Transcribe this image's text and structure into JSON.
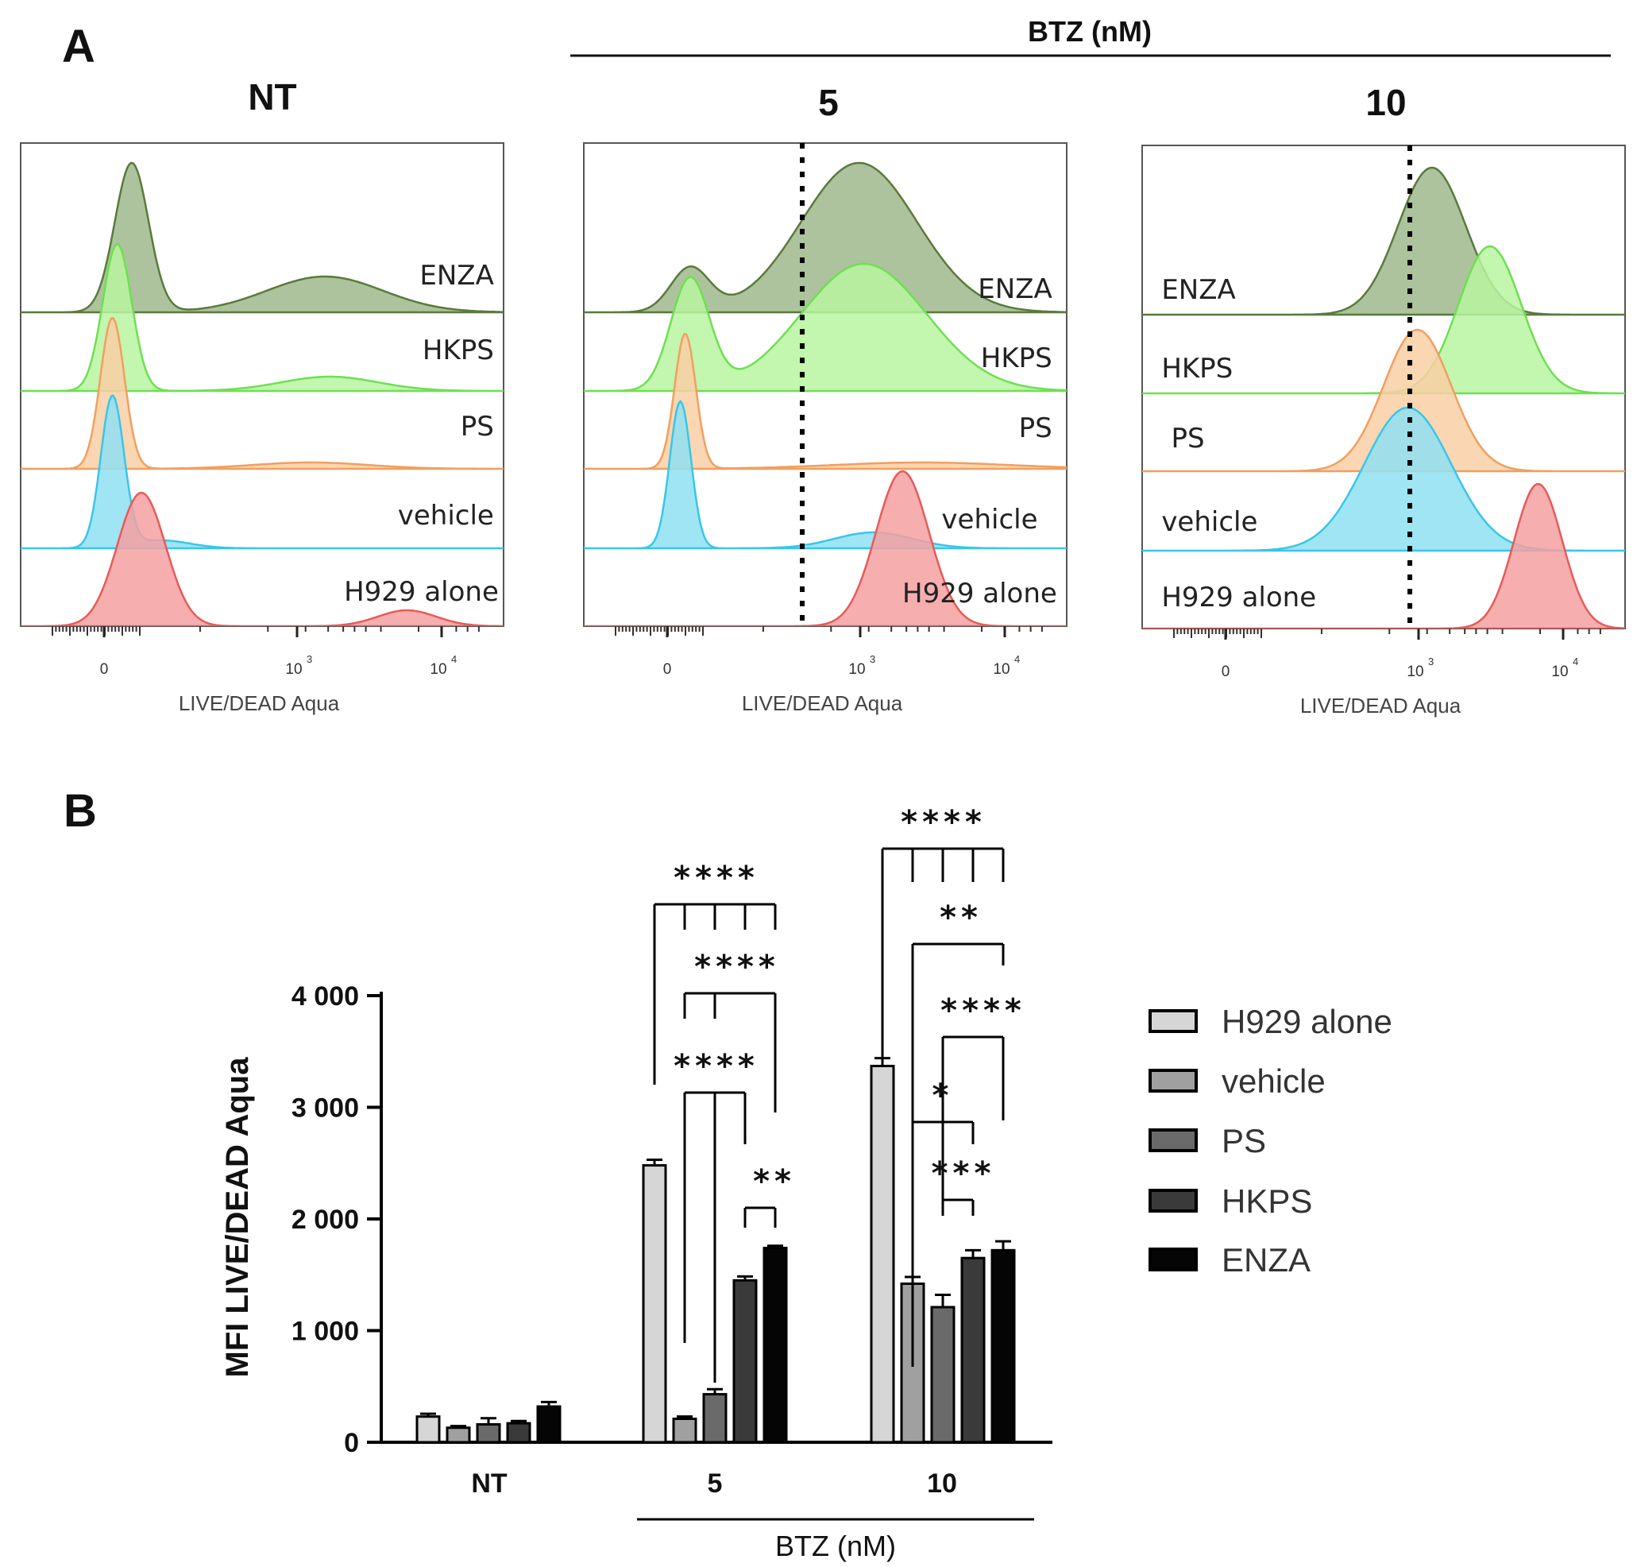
{
  "figure": {
    "panel_a_letter": "A",
    "panel_b_letter": "B"
  },
  "panel_a": {
    "btz_header": "BTZ (nM)",
    "xlabel": "LIVE/DEAD Aqua",
    "tick_labels": {
      "zero": "0",
      "base": "10",
      "exp3": "3",
      "exp4": "4"
    },
    "series_colors": {
      "ENZA": {
        "fill": "#9fb88c",
        "stroke": "#5a7a3c"
      },
      "HKPS": {
        "fill": "#b8f5a0",
        "stroke": "#6ee052"
      },
      "PS": {
        "fill": "#f9cfa4",
        "stroke": "#f0a060"
      },
      "vehicle": {
        "fill": "#8fe0f2",
        "stroke": "#39c6ea"
      },
      "H929 alone": {
        "fill": "#f4a0a0",
        "stroke": "#e85a5a"
      }
    },
    "panels": [
      {
        "title": "NT",
        "labels": [
          "ENZA",
          "HKPS",
          "PS",
          "vehicle",
          "H929 alone"
        ],
        "dotted_line": false
      },
      {
        "title": "5",
        "labels": [
          "ENZA",
          "HKPS",
          "PS",
          "vehicle",
          "H929 alone"
        ],
        "dotted_line": true
      },
      {
        "title": "10",
        "labels": [
          "ENZA",
          "HKPS",
          "PS",
          "vehicle",
          "H929 alone"
        ],
        "dotted_line": true
      }
    ]
  },
  "chart_data": {
    "type": "bar",
    "title": "",
    "ylabel": "MFI LIVE/DEAD Aqua",
    "xlabel": "BTZ (nM)",
    "ylim": [
      0,
      4000
    ],
    "yticks": [
      0,
      1000,
      2000,
      3000,
      4000
    ],
    "ytick_labels": [
      "0",
      "1 000",
      "2 000",
      "3 000",
      "4 000"
    ],
    "categories": [
      "NT",
      "5",
      "10"
    ],
    "series": [
      {
        "name": "H929 alone",
        "color": "#d6d6d6",
        "values": [
          230,
          2480,
          3370
        ],
        "errors": [
          25,
          50,
          70
        ]
      },
      {
        "name": "vehicle",
        "color": "#a0a0a0",
        "values": [
          130,
          210,
          1420
        ],
        "errors": [
          15,
          20,
          60
        ]
      },
      {
        "name": "PS",
        "color": "#6a6a6a",
        "values": [
          160,
          430,
          1210
        ],
        "errors": [
          55,
          45,
          110
        ]
      },
      {
        "name": "HKPS",
        "color": "#3a3a3a",
        "values": [
          170,
          1450,
          1650
        ],
        "errors": [
          20,
          35,
          70
        ]
      },
      {
        "name": "ENZA",
        "color": "#050505",
        "values": [
          320,
          1740,
          1720
        ],
        "errors": [
          40,
          20,
          80
        ]
      }
    ],
    "significance": [
      {
        "group": "5",
        "text": "****"
      },
      {
        "group": "5",
        "text": "****"
      },
      {
        "group": "5",
        "text": "****"
      },
      {
        "group": "5",
        "text": "**"
      },
      {
        "group": "10",
        "text": "****"
      },
      {
        "group": "10",
        "text": "**"
      },
      {
        "group": "10",
        "text": "****"
      },
      {
        "group": "10",
        "text": "*"
      },
      {
        "group": "10",
        "text": "***"
      }
    ]
  }
}
